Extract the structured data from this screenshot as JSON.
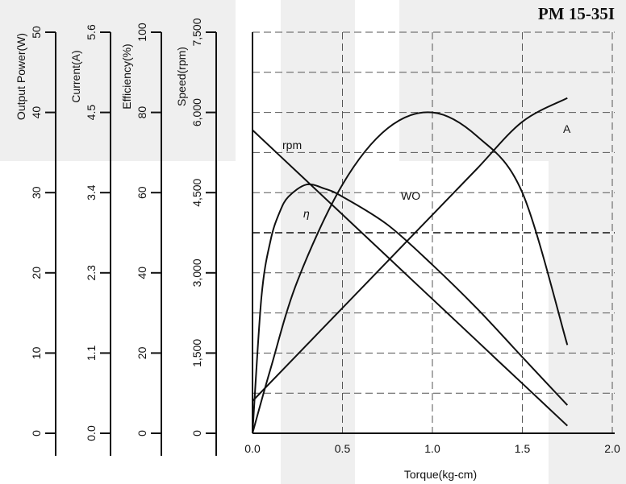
{
  "chart_data": {
    "type": "line",
    "title": "PM 15-35I",
    "xlabel": "Torque(kg-cm)",
    "x_ticks": [
      "0.0",
      "0.5",
      "1.0",
      "1.5",
      "2.0"
    ],
    "xlim": [
      0,
      2.0
    ],
    "grid": true,
    "y_axes": [
      {
        "label": "Output Power(W)",
        "ticks": [
          "0",
          "10",
          "20",
          "30",
          "40",
          "50"
        ],
        "range": [
          0,
          50
        ]
      },
      {
        "label": "Current(A)",
        "ticks": [
          "0.0",
          "1.1",
          "2.3",
          "3.4",
          "4.5",
          "5.6"
        ],
        "range": [
          0,
          5.6
        ]
      },
      {
        "label": "Efficiency(%)",
        "ticks": [
          "0",
          "20",
          "40",
          "60",
          "80",
          "100"
        ],
        "range": [
          0,
          100
        ]
      },
      {
        "label": "Speed(rpm)",
        "ticks": [
          "0",
          "1,500",
          "3,000",
          "4,500",
          "6,000",
          "7,500"
        ],
        "range": [
          0,
          7500
        ]
      }
    ],
    "series": [
      {
        "name": "rpm",
        "axis": "Speed(rpm)",
        "x": [
          0,
          0.25,
          0.5,
          0.75,
          1.0,
          1.25,
          1.5,
          1.75
        ],
        "y": [
          5670,
          4880,
          4090,
          3300,
          2510,
          1720,
          930,
          140
        ]
      },
      {
        "name": "A",
        "axis": "Current(A)",
        "x": [
          0,
          0.25,
          0.5,
          0.75,
          1.0,
          1.25,
          1.5,
          1.75
        ],
        "y": [
          0.45,
          1.1,
          1.75,
          2.4,
          3.05,
          3.7,
          4.35,
          4.68
        ]
      },
      {
        "name": "η",
        "axis": "Efficiency(%)",
        "x": [
          0,
          0.05,
          0.1,
          0.15,
          0.2,
          0.3,
          0.4,
          0.5,
          0.75,
          1.0,
          1.25,
          1.5,
          1.75
        ],
        "y": [
          0,
          34,
          48,
          55,
          59,
          62,
          61,
          59,
          52,
          42,
          31,
          19,
          7
        ]
      },
      {
        "name": "WO",
        "axis": "Output Power(W)",
        "x": [
          0,
          0.1,
          0.25,
          0.5,
          0.75,
          1.0,
          1.25,
          1.5,
          1.75
        ],
        "y": [
          0,
          8,
          19,
          31,
          38,
          40,
          37,
          30,
          11
        ]
      }
    ],
    "series_labels": [
      "rpm",
      "A",
      "η",
      "WO"
    ]
  }
}
